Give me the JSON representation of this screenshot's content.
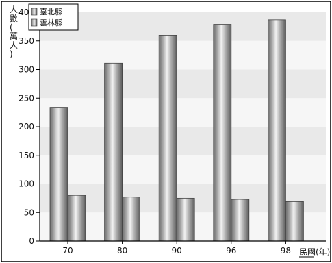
{
  "chart_data": {
    "type": "bar",
    "title": "",
    "ylabel": "人數(萬人)",
    "xlabel": "民國(年)",
    "ylim": [
      0,
      400
    ],
    "yticks": [
      0,
      50,
      100,
      150,
      200,
      250,
      300,
      350,
      400
    ],
    "categories": [
      "70",
      "80",
      "90",
      "96",
      "98"
    ],
    "series": [
      {
        "name": "臺北縣",
        "values": [
          234,
          311,
          360,
          379,
          387
        ],
        "color": "#9a9a9a"
      },
      {
        "name": "雲林縣",
        "values": [
          80,
          77,
          75,
          73,
          69
        ],
        "color": "#9a9a9a"
      }
    ],
    "legend_position": "top-left",
    "grid": false
  }
}
